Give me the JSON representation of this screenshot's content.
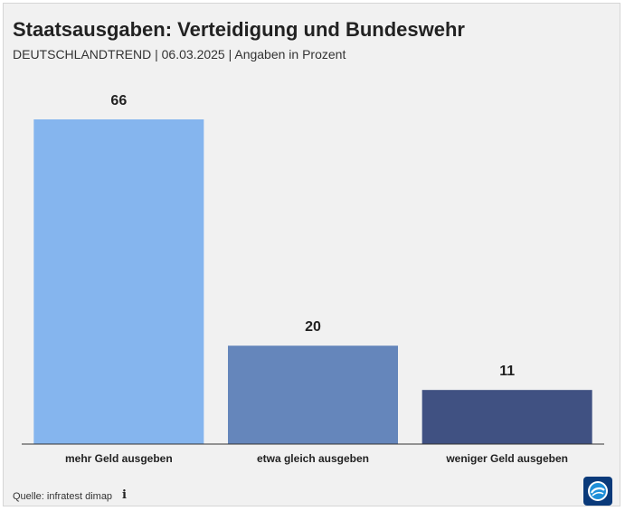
{
  "header": {
    "title": "Staatsausgaben: Verteidigung und Bundeswehr",
    "subtitle": "DEUTSCHLANDTREND | 06.03.2025 | Angaben in Prozent"
  },
  "chart_data": {
    "type": "bar",
    "title": "Staatsausgaben: Verteidigung und Bundeswehr",
    "subtitle": "DEUTSCHLANDTREND | 06.03.2025 | Angaben in Prozent",
    "categories": [
      "mehr Geld ausgeben",
      "etwa gleich ausgeben",
      "weniger Geld ausgeben"
    ],
    "values": [
      66,
      20,
      11
    ],
    "colors": [
      "#85b5ee",
      "#6586bb",
      "#405182"
    ],
    "ylim": [
      0,
      66
    ],
    "grid": false,
    "legend": "none"
  },
  "footer": {
    "source": "Quelle: infratest dimap",
    "info_icon": "info-icon",
    "logo_icon": "tagesschau-logo-icon"
  },
  "colors": {
    "background": "#f1f1f1",
    "text": "#222222",
    "axis": "#333333",
    "logo": "#0a3a7a"
  }
}
